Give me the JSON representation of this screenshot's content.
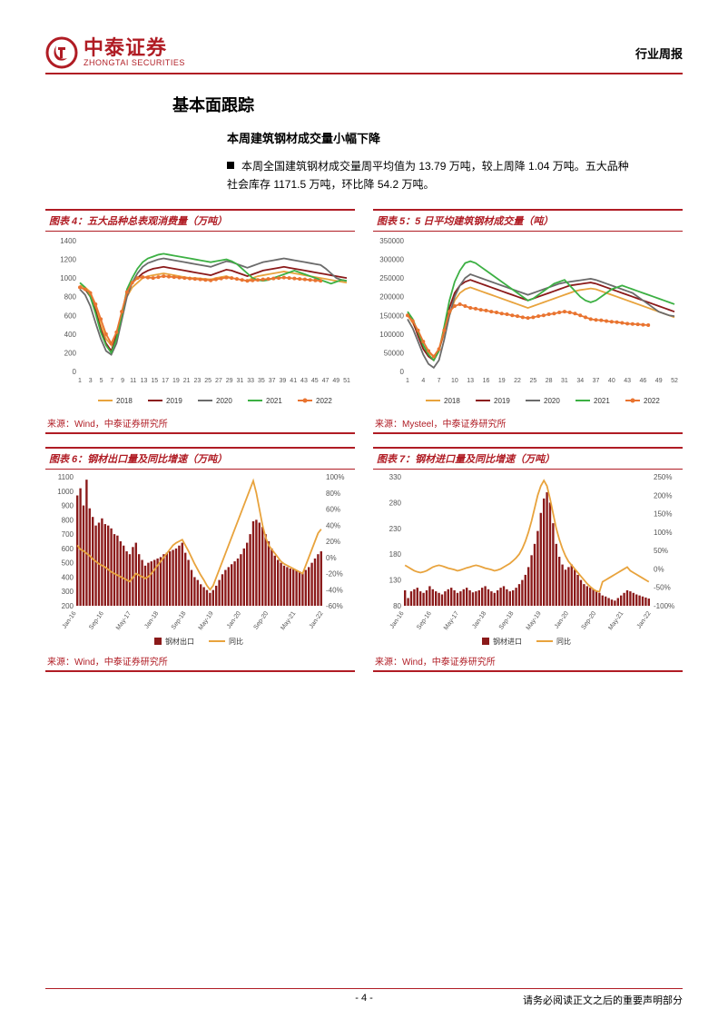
{
  "header": {
    "logo_cn": "中泰证券",
    "logo_en": "ZHONGTAI SECURITIES",
    "doc_type": "行业周报"
  },
  "section_title": "基本面跟踪",
  "subtitle": "本周建筑钢材成交量小幅下降",
  "body_text": "本周全国建筑钢材成交量周平均值为 13.79 万吨，较上周降 1.04 万吨。五大品种社会库存 1171.5 万吨，环比降 54.2 万吨。",
  "charts": {
    "c4": {
      "title": "图表 4：五大品种总表观消费量（万吨）",
      "type": "line",
      "source": "来源：Wind，中泰证券研究所",
      "ylim": [
        0,
        1400
      ],
      "ytick_step": 200,
      "xticks": [
        "1",
        "3",
        "5",
        "7",
        "9",
        "11",
        "13",
        "15",
        "17",
        "19",
        "21",
        "23",
        "25",
        "27",
        "29",
        "31",
        "33",
        "35",
        "37",
        "39",
        "41",
        "43",
        "45",
        "47",
        "49",
        "51"
      ],
      "colors": {
        "2018": "#e8a33d",
        "2019": "#8b1a1a",
        "2020": "#6b6b6b",
        "2021": "#3cb043",
        "2022": "#e97430"
      },
      "series": {
        "2018": [
          920,
          900,
          850,
          700,
          500,
          350,
          280,
          400,
          600,
          800,
          900,
          950,
          1000,
          1020,
          1030,
          1040,
          1050,
          1040,
          1030,
          1020,
          1010,
          1000,
          1000,
          995,
          990,
          985,
          1000,
          1010,
          1020,
          1000,
          990,
          980,
          970,
          1000,
          1020,
          1030,
          1040,
          1050,
          1060,
          1070,
          1060,
          1050,
          1040,
          1030,
          1020,
          1010,
          1000,
          990,
          980,
          970,
          960,
          950
        ],
        "2019": [
          900,
          880,
          800,
          650,
          450,
          300,
          220,
          380,
          620,
          850,
          950,
          1000,
          1050,
          1080,
          1100,
          1110,
          1120,
          1110,
          1100,
          1090,
          1080,
          1070,
          1060,
          1050,
          1040,
          1030,
          1050,
          1070,
          1090,
          1080,
          1060,
          1040,
          1020,
          1040,
          1060,
          1080,
          1090,
          1100,
          1110,
          1120,
          1110,
          1100,
          1090,
          1080,
          1070,
          1060,
          1050,
          1040,
          1030,
          1020,
          1010,
          1000
        ],
        "2020": [
          880,
          820,
          700,
          520,
          350,
          220,
          180,
          300,
          550,
          800,
          950,
          1050,
          1120,
          1160,
          1180,
          1200,
          1210,
          1200,
          1190,
          1180,
          1170,
          1160,
          1150,
          1140,
          1130,
          1120,
          1140,
          1160,
          1180,
          1170,
          1150,
          1130,
          1110,
          1130,
          1150,
          1170,
          1180,
          1190,
          1200,
          1210,
          1200,
          1190,
          1180,
          1170,
          1160,
          1150,
          1140,
          1100,
          1050,
          1000,
          980,
          970
        ],
        "2021": [
          950,
          900,
          800,
          620,
          420,
          280,
          200,
          350,
          600,
          880,
          1000,
          1100,
          1170,
          1210,
          1230,
          1250,
          1260,
          1250,
          1240,
          1230,
          1220,
          1210,
          1200,
          1190,
          1180,
          1170,
          1180,
          1190,
          1200,
          1180,
          1150,
          1100,
          1050,
          1000,
          980,
          970,
          980,
          1000,
          1020,
          1040,
          1060,
          1080,
          1060,
          1040,
          1020,
          1000,
          980,
          960,
          940,
          960,
          980,
          970
        ],
        "2022": [
          900,
          880,
          840,
          720,
          560,
          400,
          300,
          420,
          640,
          850,
          950,
          1000,
          1010,
          1005,
          1000,
          1010,
          1020,
          1015,
          1010,
          1005,
          1000,
          995,
          990,
          985,
          980,
          975,
          985,
          995,
          1005,
          1000,
          990,
          980,
          970,
          975,
          980,
          985,
          990,
          995,
          1000,
          1005,
          1000,
          995,
          990,
          985,
          980,
          975,
          970
        ]
      },
      "legend": [
        "2018",
        "2019",
        "2020",
        "2021",
        "2022"
      ],
      "marker_series": "2022"
    },
    "c5": {
      "title": "图表 5：5 日平均建筑钢材成交量（吨）",
      "type": "line",
      "source": "来源：Mysteel，中泰证券研究所",
      "ylim": [
        0,
        350000
      ],
      "ytick_step": 50000,
      "xticks": [
        "1",
        "4",
        "7",
        "10",
        "13",
        "16",
        "19",
        "22",
        "25",
        "28",
        "31",
        "34",
        "37",
        "40",
        "43",
        "46",
        "49",
        "52"
      ],
      "colors": {
        "2018": "#e8a33d",
        "2019": "#8b1a1a",
        "2020": "#6b6b6b",
        "2021": "#3cb043",
        "2022": "#e97430"
      },
      "series": {
        "2018": [
          150000,
          130000,
          100000,
          70000,
          50000,
          40000,
          60000,
          100000,
          150000,
          190000,
          210000,
          220000,
          225000,
          220000,
          215000,
          210000,
          205000,
          200000,
          195000,
          190000,
          185000,
          180000,
          175000,
          170000,
          175000,
          180000,
          185000,
          190000,
          195000,
          200000,
          205000,
          210000,
          215000,
          218000,
          220000,
          222000,
          220000,
          215000,
          210000,
          205000,
          200000,
          195000,
          190000,
          185000,
          180000,
          175000,
          170000,
          165000,
          160000,
          155000,
          150000,
          145000
        ],
        "2019": [
          155000,
          135000,
          95000,
          60000,
          40000,
          30000,
          55000,
          110000,
          170000,
          210000,
          230000,
          240000,
          245000,
          240000,
          235000,
          230000,
          225000,
          220000,
          215000,
          210000,
          205000,
          200000,
          195000,
          190000,
          195000,
          200000,
          205000,
          210000,
          215000,
          220000,
          225000,
          230000,
          232000,
          234000,
          236000,
          238000,
          235000,
          230000,
          225000,
          220000,
          215000,
          210000,
          205000,
          200000,
          195000,
          190000,
          185000,
          180000,
          175000,
          170000,
          165000,
          160000
        ],
        "2020": [
          140000,
          115000,
          80000,
          45000,
          20000,
          10000,
          30000,
          85000,
          150000,
          200000,
          230000,
          250000,
          260000,
          255000,
          250000,
          245000,
          240000,
          235000,
          230000,
          225000,
          220000,
          215000,
          210000,
          205000,
          210000,
          215000,
          220000,
          225000,
          230000,
          235000,
          238000,
          240000,
          242000,
          244000,
          246000,
          248000,
          245000,
          240000,
          235000,
          230000,
          225000,
          220000,
          215000,
          210000,
          200000,
          190000,
          180000,
          170000,
          160000,
          155000,
          150000,
          148000
        ],
        "2021": [
          160000,
          140000,
          105000,
          70000,
          45000,
          30000,
          55000,
          120000,
          190000,
          240000,
          270000,
          290000,
          295000,
          290000,
          280000,
          270000,
          260000,
          250000,
          240000,
          230000,
          220000,
          210000,
          200000,
          190000,
          195000,
          205000,
          215000,
          225000,
          235000,
          240000,
          245000,
          230000,
          215000,
          200000,
          190000,
          185000,
          190000,
          200000,
          210000,
          220000,
          225000,
          230000,
          225000,
          220000,
          215000,
          210000,
          205000,
          200000,
          195000,
          190000,
          185000,
          180000
        ],
        "2022": [
          150000,
          135000,
          110000,
          80000,
          55000,
          40000,
          60000,
          110000,
          160000,
          175000,
          180000,
          175000,
          170000,
          168000,
          165000,
          163000,
          160000,
          158000,
          155000,
          153000,
          150000,
          148000,
          145000,
          143000,
          145000,
          148000,
          150000,
          153000,
          155000,
          158000,
          160000,
          158000,
          155000,
          150000,
          145000,
          140000,
          138000,
          137000,
          135000,
          133000,
          132000,
          130000,
          128000,
          127000,
          126000,
          125000,
          124000
        ]
      },
      "legend": [
        "2018",
        "2019",
        "2020",
        "2021",
        "2022"
      ],
      "marker_series": "2022"
    },
    "c6": {
      "title": "图表 6：钢材出口量及同比增速（万吨）",
      "type": "bar_line",
      "source": "来源：Wind，中泰证券研究所",
      "ylim_left": [
        200,
        1100
      ],
      "ytick_left_step": 100,
      "ylim_right": [
        -60,
        100
      ],
      "ytick_right_step": 20,
      "xticks": [
        "Jan-16",
        "Sep-16",
        "May-17",
        "Jan-18",
        "Sep-18",
        "May-19",
        "Jan-20",
        "Sep-20",
        "May-21",
        "Jan-22"
      ],
      "bar_color": "#8b1a1a",
      "line_color": "#e8a33d",
      "bar_label": "钢材出口",
      "line_label": "同比",
      "bars": [
        970,
        1020,
        900,
        1080,
        880,
        820,
        760,
        780,
        810,
        770,
        760,
        740,
        700,
        690,
        650,
        620,
        580,
        560,
        610,
        640,
        560,
        520,
        480,
        500,
        510,
        520,
        530,
        540,
        560,
        570,
        580,
        590,
        600,
        620,
        640,
        570,
        520,
        450,
        400,
        380,
        350,
        330,
        310,
        290,
        310,
        340,
        380,
        420,
        450,
        470,
        490,
        510,
        530,
        560,
        600,
        640,
        700,
        790,
        800,
        780,
        750,
        700,
        650,
        600,
        550,
        520,
        500,
        480,
        470,
        460,
        460,
        450,
        440,
        430,
        450,
        470,
        500,
        530,
        560,
        580
      ],
      "line": [
        15,
        10,
        8,
        5,
        2,
        -2,
        -5,
        -8,
        -10,
        -12,
        -15,
        -18,
        -20,
        -22,
        -24,
        -26,
        -28,
        -30,
        -25,
        -20,
        -22,
        -24,
        -26,
        -24,
        -20,
        -15,
        -10,
        -5,
        0,
        5,
        10,
        15,
        18,
        20,
        22,
        15,
        8,
        0,
        -8,
        -15,
        -22,
        -28,
        -35,
        -40,
        -35,
        -25,
        -15,
        -5,
        5,
        15,
        25,
        35,
        45,
        55,
        65,
        75,
        85,
        95,
        80,
        60,
        40,
        25,
        15,
        10,
        5,
        0,
        -5,
        -8,
        -10,
        -12,
        -14,
        -16,
        -18,
        -20,
        -10,
        0,
        10,
        20,
        30,
        35
      ]
    },
    "c7": {
      "title": "图表 7：钢材进口量及同比增速（万吨）",
      "type": "bar_line",
      "source": "来源：Wind，中泰证券研究所",
      "ylim_left": [
        80,
        330
      ],
      "ytick_left_step": 50,
      "ylim_right": [
        -100,
        250
      ],
      "ytick_right_step": 50,
      "xticks": [
        "Jan-16",
        "Sep-16",
        "May-17",
        "Jan-18",
        "Sep-18",
        "May-19",
        "Jan-20",
        "Sep-20",
        "May-21",
        "Jan-22"
      ],
      "bar_color": "#8b1a1a",
      "line_color": "#e8a33d",
      "bar_label": "钢材进口",
      "line_label": "同比",
      "bars": [
        110,
        95,
        108,
        112,
        115,
        108,
        105,
        110,
        118,
        112,
        108,
        105,
        102,
        108,
        112,
        115,
        110,
        105,
        108,
        112,
        115,
        110,
        106,
        108,
        110,
        115,
        118,
        112,
        108,
        105,
        110,
        115,
        118,
        112,
        108,
        110,
        115,
        122,
        130,
        140,
        155,
        178,
        200,
        225,
        260,
        288,
        300,
        280,
        240,
        200,
        175,
        160,
        150,
        155,
        160,
        150,
        140,
        130,
        122,
        118,
        115,
        112,
        108,
        105,
        100,
        98,
        95,
        92,
        90,
        95,
        100,
        105,
        110,
        108,
        105,
        102,
        100,
        98,
        96,
        94
      ],
      "line": [
        10,
        5,
        0,
        -5,
        -8,
        -10,
        -8,
        -5,
        0,
        5,
        8,
        10,
        8,
        5,
        2,
        0,
        -2,
        -5,
        -3,
        0,
        3,
        5,
        8,
        10,
        8,
        5,
        2,
        0,
        -2,
        -5,
        -3,
        0,
        5,
        10,
        15,
        22,
        30,
        40,
        55,
        75,
        100,
        130,
        165,
        200,
        225,
        240,
        225,
        190,
        150,
        110,
        80,
        55,
        35,
        20,
        10,
        0,
        -10,
        -20,
        -30,
        -40,
        -48,
        -55,
        -60,
        -62,
        -35,
        -30,
        -25,
        -20,
        -15,
        -10,
        -5,
        0,
        5,
        -5,
        -10,
        -15,
        -20,
        -25,
        -30,
        -35
      ]
    }
  },
  "footer": {
    "page_num": "- 4 -",
    "disclaimer": "请务必阅读正文之后的重要声明部分"
  }
}
